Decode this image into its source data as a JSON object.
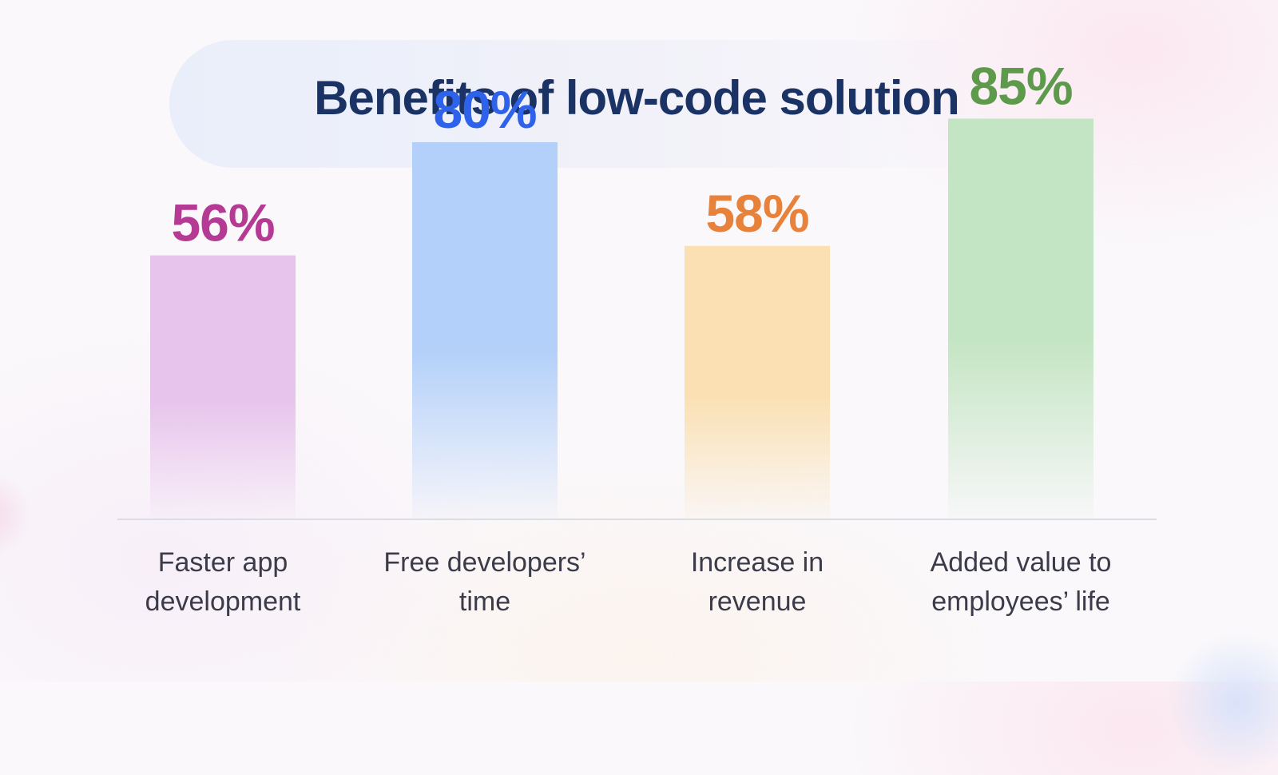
{
  "chart_data": {
    "type": "bar",
    "title": "Benefits of low-code solution",
    "categories": [
      [
        "Faster app",
        "development"
      ],
      [
        "Free developers’",
        "time"
      ],
      [
        "Increase in",
        "revenue"
      ],
      [
        "Added value to",
        "employees’ life"
      ]
    ],
    "values": [
      56,
      80,
      58,
      85
    ],
    "data_labels": [
      "56%",
      "80%",
      "58%",
      "85%"
    ],
    "ylim": [
      0,
      100
    ],
    "grid": false,
    "colors": {
      "label": [
        "#b43a94",
        "#2e62ea",
        "#e8823a",
        "#5d9a4b"
      ],
      "bar": [
        "#e7c4ec",
        "#b3d0fa",
        "#fae0b3",
        "#c4e5c3"
      ]
    }
  }
}
